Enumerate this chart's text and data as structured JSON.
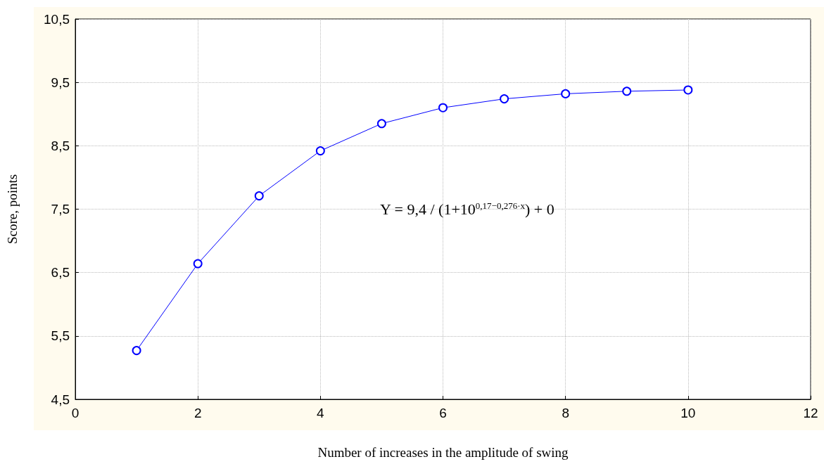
{
  "chart_data": {
    "type": "line",
    "xlabel": "Number of increases in the amplitude of swing",
    "ylabel": "Score, points",
    "x": [
      1,
      2,
      3,
      4,
      5,
      6,
      7,
      8,
      9,
      10
    ],
    "series": [
      {
        "color": "#0000ff",
        "values": [
          5.27,
          6.64,
          7.71,
          8.42,
          8.85,
          9.1,
          9.24,
          9.32,
          9.36,
          9.38
        ]
      }
    ],
    "xlim": [
      0,
      12
    ],
    "xticks": [
      0,
      2,
      4,
      6,
      8,
      10,
      12
    ],
    "ylim": [
      4.5,
      10.5
    ],
    "yticks": [
      {
        "value": 4.5,
        "label": "4,5"
      },
      {
        "value": 5.5,
        "label": "5,5"
      },
      {
        "value": 6.5,
        "label": "6,5"
      },
      {
        "value": 7.5,
        "label": "7,5"
      },
      {
        "value": 8.5,
        "label": "8,5"
      },
      {
        "value": 9.5,
        "label": "9,5"
      },
      {
        "value": 10.5,
        "label": "10,5"
      }
    ],
    "grid": true,
    "marker": "circle",
    "line_style": "solid",
    "annotations": [
      "Y = 9,4 / (1+10$^{0,17−0,276·x}$) + 0"
    ]
  }
}
